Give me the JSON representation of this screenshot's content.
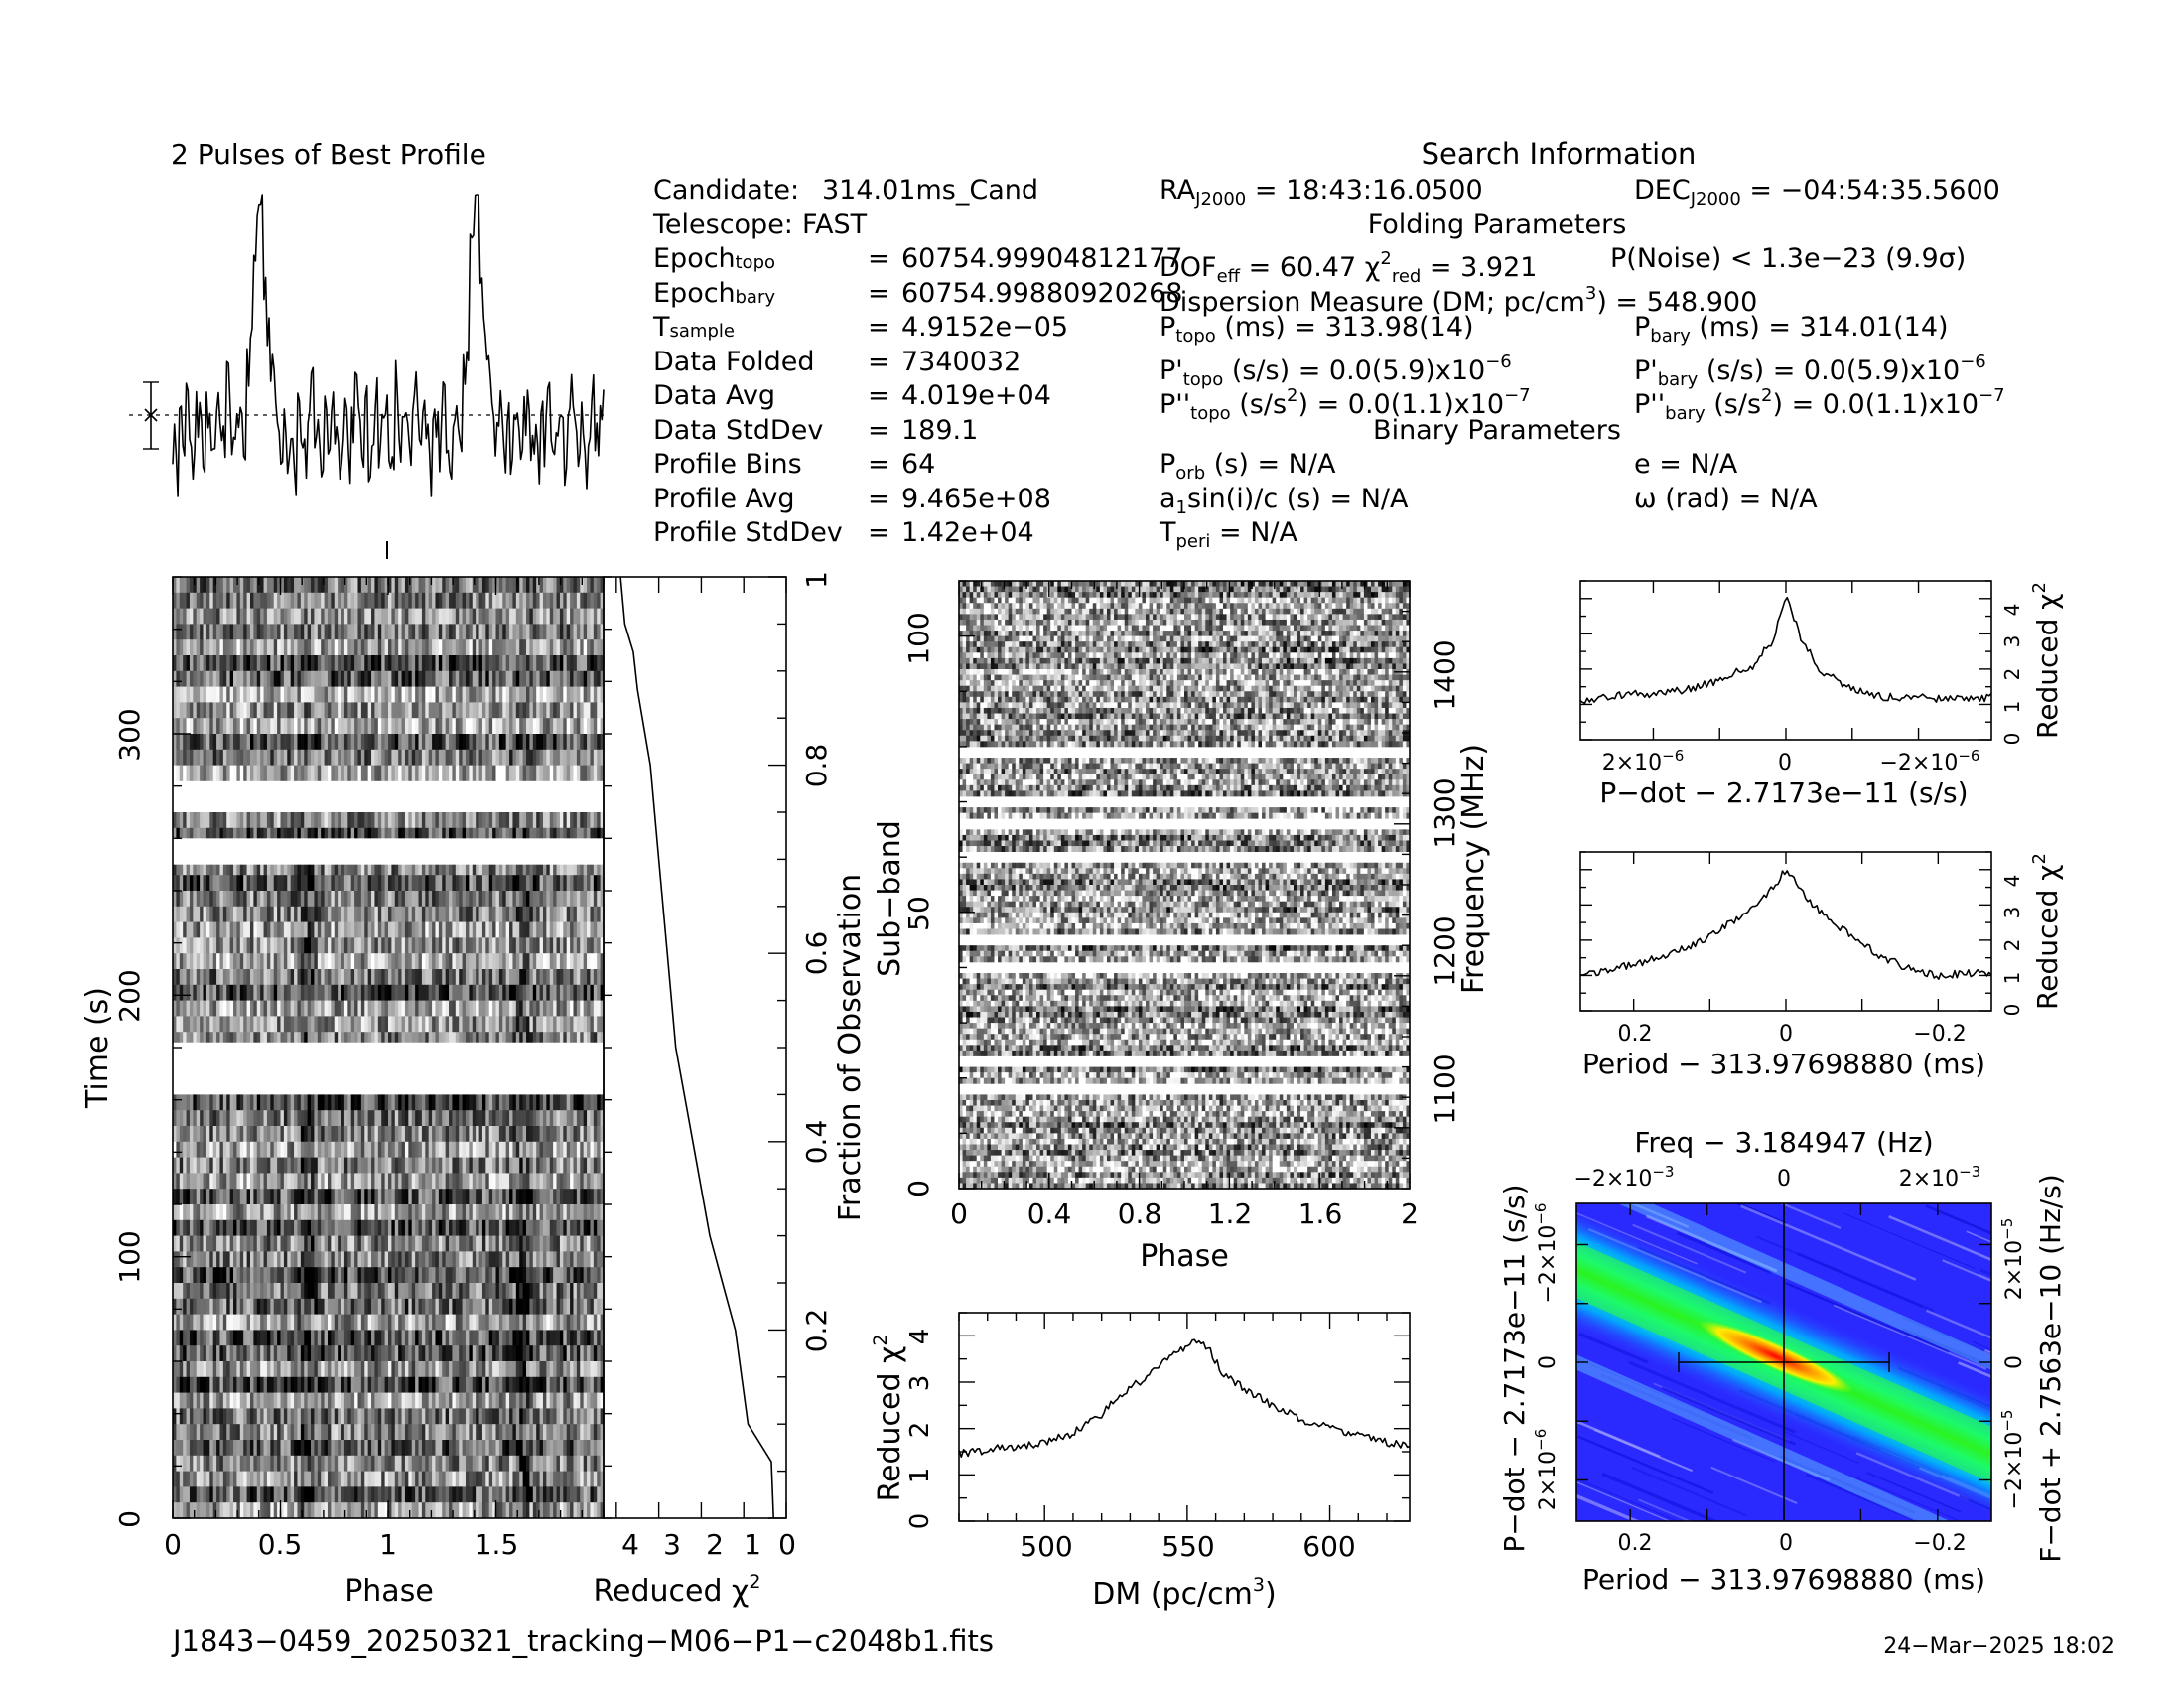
{
  "header": {
    "profile_title": "2 Pulses of Best Profile",
    "search_title": "Search Information",
    "folding_title": "Folding Parameters",
    "binary_title": "Binary Parameters",
    "filename": "J1843−0459_20250321_tracking−M06−P1−c2048b1.fits",
    "date": "24−Mar−2025 18:02"
  },
  "info_left": [
    {
      "key": "Candidate:",
      "eq": "",
      "value": "314.01ms_Cand"
    },
    {
      "key": "Telescope:",
      "eq": "",
      "value": "FAST"
    },
    {
      "key": "Epoch",
      "sub": "topo",
      "eq": "=",
      "value": "60754.99904812177"
    },
    {
      "key": "Epoch",
      "sub": "bary",
      "eq": "=",
      "value": "60754.99880920268"
    },
    {
      "key": "T",
      "sub": "sample",
      "eq": "=",
      "value": "4.9152e−05"
    },
    {
      "key": "Data Folded",
      "eq": "=",
      "value": "7340032"
    },
    {
      "key": "Data Avg",
      "eq": "=",
      "value": "4.019e+04"
    },
    {
      "key": "Data StdDev",
      "eq": "=",
      "value": "189.1"
    },
    {
      "key": "Profile Bins",
      "eq": "=",
      "value": "64"
    },
    {
      "key": "Profile Avg",
      "eq": "=",
      "value": "9.465e+08"
    },
    {
      "key": "Profile StdDev",
      "eq": "=",
      "value": "1.42e+04"
    }
  ],
  "info_right": {
    "ra_value": "= 18:43:16.0500",
    "dec_value": "= −04:54:35.5600",
    "dof_value": "= 60.47",
    "chi_value": "= 3.921",
    "pnoise": "P(Noise) < 1.3e−23   (9.9σ)",
    "dm_line": "Dispersion Measure (DM; pc/cm",
    "dm_value": ") = 548.900",
    "ptopo_value": "(ms) =  313.98(14)",
    "pbary_value": "(ms) =  314.01(14)",
    "pdot_topo_value": "(s/s) = 0.0(5.9)x10",
    "pdot_bary_value": "(s/s) = 0.0(5.9)x10",
    "pddot_topo_value": "(s/s",
    "pddot_topo_value2": ") = 0.0(1.1)x10",
    "pddot_bary_value": "(s/s",
    "pddot_bary_value2": ") = 0.0(1.1)x10",
    "porb": "(s) = N/A",
    "e": "e = N/A",
    "a1sini": "sin(i)/c (s) = N/A",
    "omega": "ω (rad) = N/A",
    "tperi": "= N/A"
  },
  "axes": {
    "phase": "Phase",
    "time": "Time (s)",
    "fraction": "Fraction of Observation",
    "reduced_chi": "Reduced χ",
    "subband": "Sub−band",
    "frequency": "Frequency (MHz)",
    "dm": "DM (pc/cm",
    "pdot_axis": "P−dot − 2.7173e−11 (s/s)",
    "period_axis": "Period − 313.97698880 (ms)",
    "freq_axis": "Freq − 3.184947 (Hz)",
    "fdot_axis": "F−dot + 2.7563e−10 (Hz/s)"
  },
  "ticks": {
    "phase_left": [
      "0",
      "0.5",
      "1",
      "1.5"
    ],
    "time": [
      "0",
      "100",
      "200",
      "300"
    ],
    "chi_bottom": [
      "4",
      "3",
      "2",
      "1",
      "0"
    ],
    "fraction": [
      "0.2",
      "0.4",
      "0.6",
      "0.8",
      "1"
    ],
    "phase_mid": [
      "0",
      "0.4",
      "0.8",
      "1.2",
      "1.6",
      "2"
    ],
    "subband": [
      "0",
      "50",
      "100"
    ],
    "frequency": [
      "1100",
      "1200",
      "1300",
      "1400"
    ],
    "dm": [
      "500",
      "550",
      "600"
    ],
    "chi_dm": [
      "0",
      "1",
      "2",
      "3",
      "4"
    ],
    "chi_small": [
      "0",
      "1",
      "2",
      "3",
      "4"
    ],
    "pdot_small": [
      "2×10",
      "0",
      "−2×10"
    ],
    "period_small": [
      "0.2",
      "0",
      "−0.2"
    ],
    "freq_top": [
      "−2×10",
      "0",
      "2×10"
    ],
    "pdot_left": [
      "−2×10",
      "0",
      "2×10"
    ],
    "fdot_right": [
      "2×10",
      "0",
      "−2×10"
    ],
    "exp6": "−6",
    "exp3": "−3",
    "exp5": "−5"
  },
  "chart_data": [
    {
      "type": "line",
      "title": "2 Pulses of Best Profile",
      "xlabel": "",
      "ylabel": "",
      "xlim": [
        0,
        2
      ],
      "description_of_series": "pulse profile, 64 bins repeated twice",
      "peak_phase": [
        0.62,
        1.62
      ],
      "series": [
        {
          "values_relative": [
            0.18,
            0.06,
            0.38,
            0.12,
            0.3,
            0.22,
            0.1,
            0.26,
            0.34,
            0.14,
            0.28,
            0.2,
            0.08,
            0.32,
            0.24,
            0.16,
            0.36,
            0.22,
            0.12,
            0.3,
            0.26,
            0.18,
            0.4,
            0.52,
            0.78,
            0.95,
            1.0,
            0.72,
            0.58,
            0.44,
            0.34,
            0.22,
            0.18,
            0.28,
            0.14,
            0.24,
            0.08,
            0.3,
            0.2,
            0.12,
            0.26,
            0.34,
            0.16,
            0.22,
            0.1,
            0.28,
            0.18,
            0.32,
            0.24,
            0.14,
            0.2,
            0.3,
            0.12,
            0.26,
            0.36,
            0.22,
            0.16,
            0.28,
            0.08,
            0.24,
            0.34,
            0.18,
            0.22,
            0.3
          ]
        }
      ]
    },
    {
      "type": "line",
      "xlabel": "Reduced χ²",
      "ylabel": "Fraction of Observation",
      "xlim": [
        4.3,
        0
      ],
      "ylim": [
        0,
        1
      ],
      "series": [
        {
          "points": [
            [
              0.3,
              0.0
            ],
            [
              0.35,
              0.06
            ],
            [
              0.9,
              0.1
            ],
            [
              1.2,
              0.2
            ],
            [
              1.5,
              0.25
            ],
            [
              1.8,
              0.3
            ],
            [
              2.2,
              0.4
            ],
            [
              2.4,
              0.45
            ],
            [
              2.6,
              0.5
            ],
            [
              2.8,
              0.6
            ],
            [
              3.0,
              0.7
            ],
            [
              3.2,
              0.8
            ],
            [
              3.5,
              0.88
            ],
            [
              3.6,
              0.92
            ],
            [
              3.8,
              0.95
            ],
            [
              3.9,
              1.0
            ]
          ]
        }
      ]
    },
    {
      "type": "line",
      "xlabel": "DM (pc/cm³)",
      "ylabel": "Reduced χ²",
      "xlim": [
        470,
        628
      ],
      "ylim": [
        0,
        4.5
      ],
      "series": [
        {
          "points": [
            [
              470,
              1.45
            ],
            [
              480,
              1.55
            ],
            [
              490,
              1.6
            ],
            [
              500,
              1.7
            ],
            [
              510,
              1.9
            ],
            [
              520,
              2.3
            ],
            [
              525,
              2.65
            ],
            [
              530,
              2.9
            ],
            [
              535,
              3.05
            ],
            [
              540,
              3.3
            ],
            [
              545,
              3.6
            ],
            [
              550,
              3.8
            ],
            [
              553,
              3.95
            ],
            [
              558,
              3.7
            ],
            [
              562,
              3.2
            ],
            [
              570,
              2.85
            ],
            [
              580,
              2.5
            ],
            [
              590,
              2.2
            ],
            [
              600,
              2.0
            ],
            [
              610,
              1.85
            ],
            [
              620,
              1.7
            ],
            [
              628,
              1.6
            ]
          ]
        }
      ]
    },
    {
      "type": "line",
      "xlabel": "P−dot − 2.7173e−11 (s/s)",
      "ylabel": "Reduced χ²",
      "xlim": [
        3.1e-06,
        -3.1e-06
      ],
      "ylim": [
        0,
        4.5
      ],
      "series": [
        {
          "points": [
            [
              3.1e-06,
              1.1
            ],
            [
              2.4e-06,
              1.3
            ],
            [
              2e-06,
              1.3
            ],
            [
              1.5e-06,
              1.4
            ],
            [
              1e-06,
              1.7
            ],
            [
              5e-07,
              2.1
            ],
            [
              2e-07,
              2.8
            ],
            [
              0,
              4.1
            ],
            [
              -2e-07,
              3.0
            ],
            [
              -5e-07,
              2.0
            ],
            [
              -1e-06,
              1.4
            ],
            [
              -1.5e-06,
              1.2
            ],
            [
              -2e-06,
              1.2
            ],
            [
              -2.5e-06,
              1.15
            ],
            [
              -3.1e-06,
              1.2
            ]
          ]
        }
      ]
    },
    {
      "type": "line",
      "xlabel": "Period − 313.97698880 (ms)",
      "ylabel": "Reduced χ²",
      "xlim": [
        0.27,
        -0.27
      ],
      "ylim": [
        0,
        4.5
      ],
      "series": [
        {
          "points": [
            [
              0.27,
              1.0
            ],
            [
              0.2,
              1.3
            ],
            [
              0.15,
              1.6
            ],
            [
              0.1,
              2.1
            ],
            [
              0.06,
              2.7
            ],
            [
              0.03,
              3.2
            ],
            [
              0.01,
              3.7
            ],
            [
              0,
              4.0
            ],
            [
              -0.02,
              3.4
            ],
            [
              -0.05,
              2.7
            ],
            [
              -0.08,
              2.2
            ],
            [
              -0.12,
              1.6
            ],
            [
              -0.16,
              1.2
            ],
            [
              -0.2,
              1.0
            ],
            [
              -0.27,
              1.1
            ]
          ]
        }
      ]
    },
    {
      "type": "heatmap",
      "title": "Freq − 3.184947 (Hz)",
      "xlabel": "Period − 313.97698880 (ms)",
      "ylabel": "P−dot − 2.7173e−11 (s/s)",
      "xlim": [
        0.27,
        -0.27
      ],
      "ylim": [
        2.7e-06,
        -2.7e-06
      ],
      "peak": [
        0,
        0
      ],
      "colors": [
        "#ffffff",
        "#0000ff",
        "#00ffff",
        "#00ff00",
        "#ffff00",
        "#ff0000"
      ]
    },
    {
      "type": "heatmap",
      "xlabel": "Phase",
      "ylabel": "Time (s)",
      "xlim": [
        0,
        2
      ],
      "ylim": [
        0,
        360
      ],
      "gaps_time": [
        [
          163,
          182
        ],
        [
          250,
          260
        ],
        [
          270,
          280
        ]
      ]
    },
    {
      "type": "heatmap",
      "xlabel": "Phase",
      "ylabel": "Sub−band",
      "xlim": [
        0,
        2
      ],
      "ylim": [
        0,
        110
      ],
      "gaps_subband": [
        [
          17.5,
          18.5
        ],
        [
          22.5,
          23.5
        ],
        [
          39.5,
          40.5
        ],
        [
          44.5,
          45.5
        ],
        [
          59.5,
          60.5
        ],
        [
          65.5,
          66.5
        ],
        [
          69.5,
          70.5
        ],
        [
          78.5,
          79.5
        ]
      ]
    }
  ]
}
